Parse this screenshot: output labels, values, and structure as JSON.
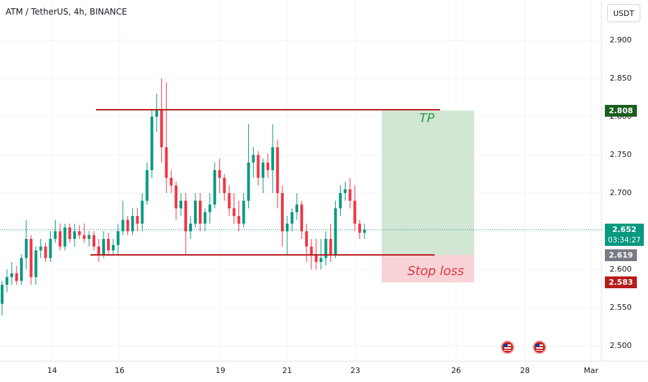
{
  "header": {
    "symbol_title": "ATM / TetherUS, 4h, BINANCE",
    "currency": "USDT"
  },
  "colors": {
    "up": "#089981",
    "down": "#f23645",
    "level_line": "#b71c1c",
    "tp_zone": "#d2e6d4",
    "sl_zone": "#f8d2d6",
    "tp_text": "#2e9d48",
    "sl_text": "#e0353f",
    "grid": "#f0f3fa"
  },
  "y_axis": {
    "ticks": [
      "2.900",
      "2.850",
      "2.800",
      "2.750",
      "2.700",
      "2.650",
      "2.600",
      "2.550",
      "2.500"
    ]
  },
  "x_axis": {
    "ticks": [
      "14",
      "16",
      "19",
      "21",
      "23",
      "26",
      "28",
      "Mar"
    ]
  },
  "price_badges": {
    "tp": {
      "label": "2.808",
      "color": "#1b5e20"
    },
    "current": {
      "label": "2.652",
      "color": "#089981",
      "countdown": "03:34:27"
    },
    "entry": {
      "label": "2.619",
      "color": "#787b86"
    },
    "stop": {
      "label": "2.583",
      "color": "#b71c1c"
    }
  },
  "annotations": {
    "tp_label": "TP",
    "sl_label": "Stop loss",
    "resistance_price": 2.81,
    "support_price": 2.62,
    "tp_price": 2.808,
    "entry_price": 2.619,
    "stop_price": 2.583,
    "last_price": 2.652
  },
  "events": [
    {
      "icon": "us-flag-icon"
    },
    {
      "icon": "us-flag-icon"
    }
  ],
  "chart_data": {
    "type": "candlestick",
    "timeframe": "4h",
    "ylim": [
      2.48,
      2.93
    ],
    "candles": [
      [
        2.555,
        2.585,
        2.54,
        2.58
      ],
      [
        2.58,
        2.6,
        2.57,
        2.59
      ],
      [
        2.59,
        2.61,
        2.58,
        2.595
      ],
      [
        2.595,
        2.605,
        2.58,
        2.585
      ],
      [
        2.585,
        2.62,
        2.58,
        2.615
      ],
      [
        2.615,
        2.665,
        2.6,
        2.64
      ],
      [
        2.64,
        2.645,
        2.58,
        2.59
      ],
      [
        2.59,
        2.63,
        2.58,
        2.625
      ],
      [
        2.625,
        2.64,
        2.615,
        2.63
      ],
      [
        2.63,
        2.635,
        2.61,
        2.615
      ],
      [
        2.615,
        2.65,
        2.61,
        2.64
      ],
      [
        2.64,
        2.665,
        2.635,
        2.65
      ],
      [
        2.65,
        2.66,
        2.625,
        2.63
      ],
      [
        2.63,
        2.66,
        2.625,
        2.655
      ],
      [
        2.655,
        2.66,
        2.635,
        2.64
      ],
      [
        2.64,
        2.66,
        2.63,
        2.65
      ],
      [
        2.65,
        2.658,
        2.64,
        2.645
      ],
      [
        2.645,
        2.66,
        2.635,
        2.64
      ],
      [
        2.64,
        2.65,
        2.63,
        2.645
      ],
      [
        2.645,
        2.65,
        2.625,
        2.63
      ],
      [
        2.63,
        2.64,
        2.61,
        2.62
      ],
      [
        2.62,
        2.65,
        2.615,
        2.64
      ],
      [
        2.64,
        2.648,
        2.618,
        2.625
      ],
      [
        2.625,
        2.64,
        2.62,
        2.632
      ],
      [
        2.632,
        2.66,
        2.62,
        2.65
      ],
      [
        2.65,
        2.69,
        2.645,
        2.665
      ],
      [
        2.665,
        2.67,
        2.645,
        2.65
      ],
      [
        2.65,
        2.68,
        2.645,
        2.67
      ],
      [
        2.67,
        2.68,
        2.65,
        2.66
      ],
      [
        2.66,
        2.7,
        2.65,
        2.69
      ],
      [
        2.69,
        2.74,
        2.685,
        2.73
      ],
      [
        2.73,
        2.81,
        2.72,
        2.8
      ],
      [
        2.8,
        2.83,
        2.78,
        2.81
      ],
      [
        2.81,
        2.85,
        2.74,
        2.76
      ],
      [
        2.76,
        2.845,
        2.7,
        2.72
      ],
      [
        2.72,
        2.73,
        2.7,
        2.71
      ],
      [
        2.71,
        2.715,
        2.665,
        2.68
      ],
      [
        2.68,
        2.7,
        2.67,
        2.69
      ],
      [
        2.69,
        2.7,
        2.62,
        2.65
      ],
      [
        2.65,
        2.67,
        2.64,
        2.66
      ],
      [
        2.66,
        2.7,
        2.655,
        2.69
      ],
      [
        2.69,
        2.7,
        2.65,
        2.66
      ],
      [
        2.66,
        2.68,
        2.65,
        2.675
      ],
      [
        2.675,
        2.7,
        2.66,
        2.685
      ],
      [
        2.685,
        2.74,
        2.68,
        2.73
      ],
      [
        2.73,
        2.745,
        2.7,
        2.72
      ],
      [
        2.72,
        2.725,
        2.69,
        2.7
      ],
      [
        2.7,
        2.71,
        2.67,
        2.68
      ],
      [
        2.68,
        2.7,
        2.66,
        2.67
      ],
      [
        2.67,
        2.69,
        2.65,
        2.66
      ],
      [
        2.66,
        2.7,
        2.655,
        2.69
      ],
      [
        2.69,
        2.79,
        2.68,
        2.74
      ],
      [
        2.74,
        2.76,
        2.72,
        2.75
      ],
      [
        2.75,
        2.755,
        2.71,
        2.72
      ],
      [
        2.72,
        2.745,
        2.7,
        2.74
      ],
      [
        2.74,
        2.752,
        2.72,
        2.73
      ],
      [
        2.73,
        2.79,
        2.7,
        2.76
      ],
      [
        2.76,
        2.77,
        2.68,
        2.7
      ],
      [
        2.7,
        2.71,
        2.63,
        2.65
      ],
      [
        2.65,
        2.67,
        2.62,
        2.66
      ],
      [
        2.66,
        2.68,
        2.65,
        2.675
      ],
      [
        2.675,
        2.7,
        2.665,
        2.685
      ],
      [
        2.685,
        2.69,
        2.64,
        2.65
      ],
      [
        2.65,
        2.66,
        2.61,
        2.63
      ],
      [
        2.63,
        2.64,
        2.6,
        2.62
      ],
      [
        2.62,
        2.64,
        2.6,
        2.61
      ],
      [
        2.61,
        2.64,
        2.6,
        2.615
      ],
      [
        2.615,
        2.65,
        2.605,
        2.64
      ],
      [
        2.64,
        2.66,
        2.61,
        2.62
      ],
      [
        2.62,
        2.69,
        2.615,
        2.68
      ],
      [
        2.68,
        2.71,
        2.67,
        2.7
      ],
      [
        2.7,
        2.715,
        2.69,
        2.705
      ],
      [
        2.705,
        2.72,
        2.68,
        2.69
      ],
      [
        2.69,
        2.71,
        2.65,
        2.66
      ],
      [
        2.66,
        2.665,
        2.64,
        2.648
      ],
      [
        2.648,
        2.66,
        2.64,
        2.652
      ]
    ]
  }
}
